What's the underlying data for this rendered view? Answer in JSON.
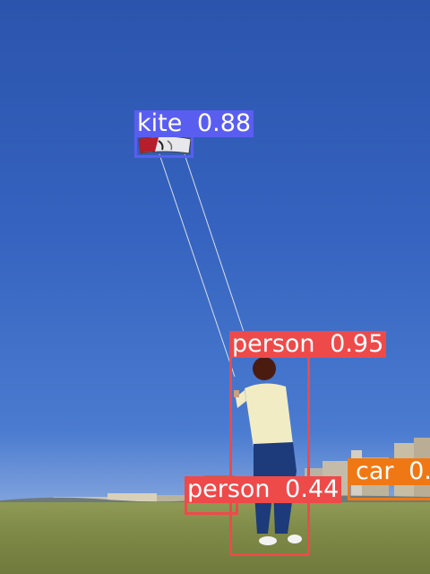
{
  "detections": [
    {
      "label": "kite",
      "score": "0.88",
      "color": "#5a5ef0"
    },
    {
      "label": "person",
      "score": "0.95",
      "color": "#ee4a4a"
    },
    {
      "label": "person",
      "score": "0.44",
      "color": "#ee4a4a"
    },
    {
      "label": "car",
      "score": "0.",
      "color": "#f07814"
    }
  ]
}
